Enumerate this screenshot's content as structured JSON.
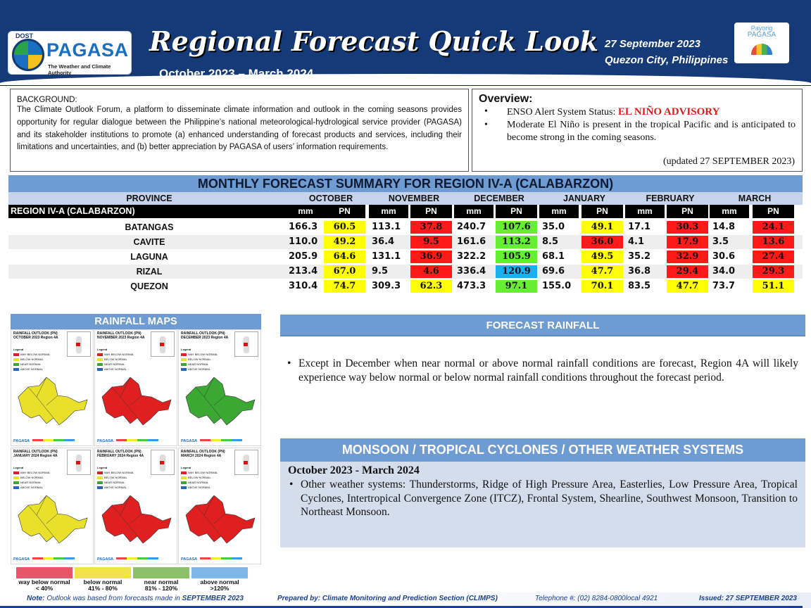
{
  "header": {
    "logo": {
      "dost": "DOST",
      "name": "PAGASA",
      "tagline": "The Weather and Climate Authority"
    },
    "title": "Regional Forecast Quick Look",
    "period": "October 2023 – March 2024",
    "date": "27 September 2023",
    "place": "Quezon City, Philippines",
    "payong": {
      "line1": "Payong",
      "line2": "PAGASA"
    }
  },
  "background": {
    "title": "BACKGROUND:",
    "text": "The Climate Outlook Forum, a platform to disseminate climate information and outlook in the coming seasons provides opportunity for regular dialogue between the Philippine’s national meteorological-hydrological service provider (PAGASA) and its stakeholder institutions to promote (a) enhanced understanding of forecast products and services, including their limitations and uncertainties, and (b) better appreciation by PAGASA of users’ information requirements."
  },
  "overview": {
    "title": "Overview:",
    "enso_label": "ENSO Alert System Status: ",
    "enso_status": "EL NIÑO ADVISORY",
    "item2": "Moderate El Niño is present in the tropical Pacific and is anticipated to become strong in the coming seasons.",
    "updated": "(updated 27 SEPTEMBER 2023)"
  },
  "table": {
    "title": "MONTHLY FORECAST SUMMARY FOR REGION IV-A  (CALABARZON)",
    "province_header": "PROVINCE",
    "region_label": "REGION IV-A  (CALABARZON)",
    "months": [
      "OCTOBER",
      "NOVEMBER",
      "DECEMBER",
      "JANUARY",
      "FEBRUARY",
      "MARCH"
    ],
    "mm_label": "mm",
    "pn_label": "PN",
    "rows": [
      {
        "province": "BATANGAS",
        "mm": [
          "166.3",
          "113.1",
          "240.7",
          "35.0",
          "17.1",
          "14.8"
        ],
        "pn": [
          "60.5",
          "37.8",
          "107.6",
          "49.1",
          "30.3",
          "24.1"
        ]
      },
      {
        "province": "CAVITE",
        "mm": [
          "110.0",
          "36.4",
          "161.6",
          "8.5",
          "4.1",
          "3.5"
        ],
        "pn": [
          "49.2",
          "9.5",
          "113.2",
          "36.0",
          "17.9",
          "13.6"
        ]
      },
      {
        "province": "LAGUNA",
        "mm": [
          "205.9",
          "131.1",
          "322.2",
          "68.1",
          "35.2",
          "30.6"
        ],
        "pn": [
          "64.6",
          "36.9",
          "105.9",
          "49.5",
          "32.9",
          "27.4"
        ]
      },
      {
        "province": "RIZAL",
        "mm": [
          "213.4",
          "9.5",
          "336.4",
          "69.6",
          "36.8",
          "34.0"
        ],
        "pn": [
          "67.0",
          "4.6",
          "120.9",
          "47.7",
          "29.4",
          "29.3"
        ]
      },
      {
        "province": "QUEZON",
        "mm": [
          "310.4",
          "309.3",
          "473.3",
          "155.0",
          "83.5",
          "73.7"
        ],
        "pn": [
          "74.7",
          "62.3",
          "97.1",
          "70.1",
          "47.7",
          "51.1"
        ]
      }
    ],
    "colors": {
      "way_below": "#ff1a1a",
      "below": "#ffff00",
      "near": "#66ee33",
      "above": "#1ab0f0"
    }
  },
  "maps": {
    "title": "RAINFALL MAPS",
    "items": [
      {
        "title": "RAINFALL OUTLOOK (PN) OCTOBER 2023 Region 4A",
        "fill": "#e8e02a"
      },
      {
        "title": "RAINFALL OUTLOOK (PN) NOVEMBER 2023 Region 4A",
        "fill": "#e02020"
      },
      {
        "title": "RAINFALL OUTLOOK (PN) DECEMBER 2023 Region 4A",
        "fill": "#3aa832"
      },
      {
        "title": "RAINFALL OUTLOOK (PN) JANUARY 2024 Region 4A",
        "fill": "#e8e02a"
      },
      {
        "title": "RAINFALL OUTLOOK (PN) FEBRUARY 2024 Region 4A",
        "fill": "#e02020"
      },
      {
        "title": "RAINFALL OUTLOOK (PN) MARCH 2024 Region 4A",
        "fill": "#e02020"
      }
    ],
    "inset_label": "LOCATION INDEX",
    "legend_label": "Legend",
    "legend_items": [
      "WAY BELOW NORMAL",
      "BELOW NORMAL",
      "NEAR NORMAL",
      "ABOVE NORMAL"
    ],
    "logo_label": "PAGASA",
    "bottom_legend": [
      {
        "label": "way below normal",
        "range": "< 40%",
        "color": "#e8556a"
      },
      {
        "label": "below normal",
        "range": "41%  -  80%",
        "color": "#f3e34a"
      },
      {
        "label": "near normal",
        "range": "81% - 120%",
        "color": "#8dc06a"
      },
      {
        "label": "above normal",
        "range": ">120%",
        "color": "#7fb7e8"
      }
    ]
  },
  "forecast_rainfall": {
    "title": "FORECAST RAINFALL",
    "text": "Except in December when near normal or above normal rainfall conditions are forecast, Region 4A will likely experience way below normal or below normal rainfall conditions throughout the forecast period."
  },
  "monsoon": {
    "title": "MONSOON / TROPICAL CYCLONES / OTHER WEATHER SYSTEMS",
    "subtitle": "October 2023 - March 2024",
    "text": "Other weather systems: Thunderstorms,  Ridge of High Pressure Area,  Easterlies, Low Pressure Area, Tropical Cyclones, Intertropical Convergence Zone (ITCZ), Frontal System, Shearline, Southwest Monsoon, Transition to Northeast Monsoon."
  },
  "footer": {
    "note_label": "Note:",
    "note": " Outlook was based from forecasts made in ",
    "note_month": "SEPTEMBER 2023",
    "prepared": "Prepared by: Climate Monitoring and Prediction Section (CLIMPS)",
    "telephone": "Telephone #: (02) 8284-0800local 4921",
    "issued": "Issued: 27 SEPTEMBER 2023"
  }
}
